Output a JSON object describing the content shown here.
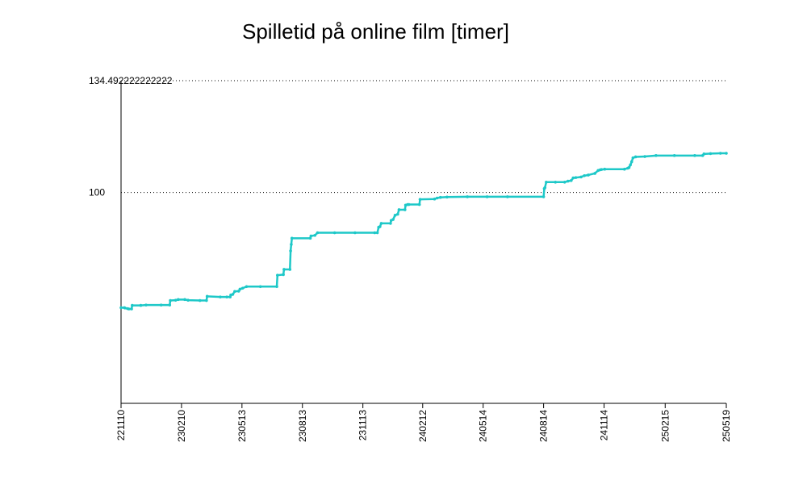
{
  "chart_data": {
    "type": "line",
    "title": "Spilletid på online film [timer]",
    "xlabel": "",
    "ylabel": "",
    "x_tick_labels": [
      "221110",
      "230210",
      "230513",
      "230813",
      "231113",
      "240212",
      "240514",
      "240814",
      "241114",
      "250215",
      "250519"
    ],
    "y_tick_labels": [
      {
        "value": 134.49222222222,
        "label": "134.492222222222"
      },
      {
        "value": 100,
        "label": "100"
      }
    ],
    "ylim": [
      35,
      134.49222222222
    ],
    "grid": "horizontal dotted at y ticks",
    "legend": "none",
    "series": [
      {
        "color": "#1ec8c8",
        "points": [
          [
            "2022-11-10",
            64.5
          ],
          [
            "2022-11-15",
            64.5
          ],
          [
            "2022-11-16",
            64.4
          ],
          [
            "2022-11-20",
            64.2
          ],
          [
            "2022-11-22",
            64.1
          ],
          [
            "2022-11-26",
            64.1
          ],
          [
            "2022-11-27",
            65.2
          ],
          [
            "2022-12-10",
            65.2
          ],
          [
            "2022-12-18",
            65.3
          ],
          [
            "2023-01-10",
            65.3
          ],
          [
            "2023-01-23",
            65.3
          ],
          [
            "2023-01-24",
            66.7
          ],
          [
            "2023-02-01",
            66.8
          ],
          [
            "2023-02-05",
            67.0
          ],
          [
            "2023-02-15",
            67.0
          ],
          [
            "2023-02-20",
            66.8
          ],
          [
            "2023-03-10",
            66.7
          ],
          [
            "2023-03-20",
            66.7
          ],
          [
            "2023-03-21",
            68.0
          ],
          [
            "2023-04-10",
            67.8
          ],
          [
            "2023-04-20",
            67.8
          ],
          [
            "2023-04-25",
            67.8
          ],
          [
            "2023-04-26",
            68.4
          ],
          [
            "2023-04-29",
            68.6
          ],
          [
            "2023-05-02",
            69.5
          ],
          [
            "2023-05-08",
            69.6
          ],
          [
            "2023-05-10",
            70.2
          ],
          [
            "2023-05-14",
            70.5
          ],
          [
            "2023-05-20",
            71.0
          ],
          [
            "2023-06-10",
            71.0
          ],
          [
            "2023-07-05",
            71.0
          ],
          [
            "2023-07-06",
            74.5
          ],
          [
            "2023-07-15",
            74.7
          ],
          [
            "2023-07-16",
            76.3
          ],
          [
            "2023-07-25",
            76.3
          ],
          [
            "2023-07-26",
            82.0
          ],
          [
            "2023-07-27",
            84.0
          ],
          [
            "2023-07-28",
            85.9
          ],
          [
            "2023-08-25",
            85.9
          ],
          [
            "2023-08-26",
            86.6
          ],
          [
            "2023-09-01",
            86.8
          ],
          [
            "2023-09-05",
            87.6
          ],
          [
            "2023-10-01",
            87.6
          ],
          [
            "2023-11-01",
            87.6
          ],
          [
            "2023-12-01",
            87.6
          ],
          [
            "2023-12-05",
            87.6
          ],
          [
            "2023-12-07",
            89.3
          ],
          [
            "2023-12-09",
            89.5
          ],
          [
            "2023-12-11",
            90.5
          ],
          [
            "2023-12-25",
            90.5
          ],
          [
            "2023-12-26",
            91.4
          ],
          [
            "2023-12-29",
            91.7
          ],
          [
            "2024-01-01",
            93.0
          ],
          [
            "2024-01-05",
            93.3
          ],
          [
            "2024-01-07",
            94.7
          ],
          [
            "2024-01-16",
            94.7
          ],
          [
            "2024-01-17",
            96.1
          ],
          [
            "2024-01-20",
            96.3
          ],
          [
            "2024-01-22",
            96.3
          ],
          [
            "2024-02-07",
            96.3
          ],
          [
            "2024-02-08",
            97.9
          ],
          [
            "2024-03-01",
            98.0
          ],
          [
            "2024-03-05",
            98.3
          ],
          [
            "2024-03-10",
            98.5
          ],
          [
            "2024-03-20",
            98.6
          ],
          [
            "2024-04-20",
            98.7
          ],
          [
            "2024-05-20",
            98.7
          ],
          [
            "2024-06-20",
            98.7
          ],
          [
            "2024-08-14",
            98.7
          ],
          [
            "2024-08-15",
            101.2
          ],
          [
            "2024-08-16",
            101.5
          ],
          [
            "2024-08-18",
            103.2
          ],
          [
            "2024-09-01",
            103.2
          ],
          [
            "2024-09-15",
            103.2
          ],
          [
            "2024-09-20",
            103.5
          ],
          [
            "2024-09-25",
            103.7
          ],
          [
            "2024-09-28",
            104.5
          ],
          [
            "2024-10-02",
            104.6
          ],
          [
            "2024-10-10",
            104.8
          ],
          [
            "2024-10-15",
            105.2
          ],
          [
            "2024-10-21",
            105.4
          ],
          [
            "2024-10-31",
            105.9
          ],
          [
            "2024-11-05",
            106.8
          ],
          [
            "2024-11-08",
            107.0
          ],
          [
            "2024-11-10",
            107.1
          ],
          [
            "2024-11-15",
            107.2
          ],
          [
            "2024-12-15",
            107.2
          ],
          [
            "2024-12-20",
            107.5
          ],
          [
            "2024-12-22",
            107.7
          ],
          [
            "2024-12-24",
            108.5
          ],
          [
            "2024-12-26",
            109.5
          ],
          [
            "2024-12-28",
            110.7
          ],
          [
            "2025-01-01",
            111.0
          ],
          [
            "2025-01-15",
            111.1
          ],
          [
            "2025-02-01",
            111.4
          ],
          [
            "2025-03-01",
            111.4
          ],
          [
            "2025-04-01",
            111.4
          ],
          [
            "2025-04-13",
            111.4
          ],
          [
            "2025-04-15",
            111.9
          ],
          [
            "2025-04-25",
            112.0
          ],
          [
            "2025-05-10",
            112.1
          ],
          [
            "2025-05-19",
            112.1
          ]
        ]
      }
    ]
  }
}
